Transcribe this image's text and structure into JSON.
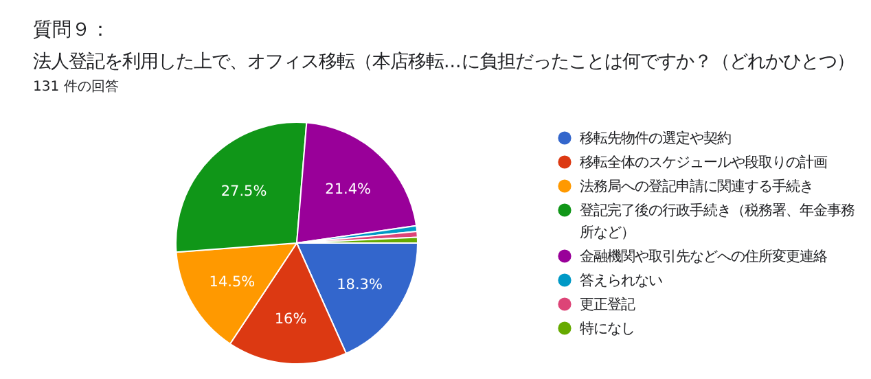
{
  "chart_data": {
    "type": "pie",
    "title": "質問９：",
    "subtitle": "法人登記を利用した上で、オフィス移転（本店移転...に負担だったことは何ですか？（どれかひとつ）",
    "annotations": [
      "131 件の回答"
    ],
    "categories": [
      "移転先物件の選定や契約",
      "移転全体のスケジュールや段取りの計画",
      "法務局への登記申請に関連する手続き",
      "登記完了後の行政手続き（税務署、年金事務所など）",
      "金融機関や取引先などへの住所変更連絡",
      "答えられない",
      "更正登記",
      "特になし"
    ],
    "values": [
      18.3,
      16,
      14.5,
      27.5,
      21.4,
      0.77,
      0.77,
      0.76
    ],
    "value_labels": [
      "18.3%",
      "16%",
      "14.5%",
      "27.5%",
      "21.4%",
      null,
      null,
      null
    ],
    "colors": [
      "#3366cc",
      "#dc3912",
      "#ff9900",
      "#109618",
      "#990099",
      "#0099c6",
      "#dd4477",
      "#66aa00"
    ],
    "legend": "right"
  }
}
